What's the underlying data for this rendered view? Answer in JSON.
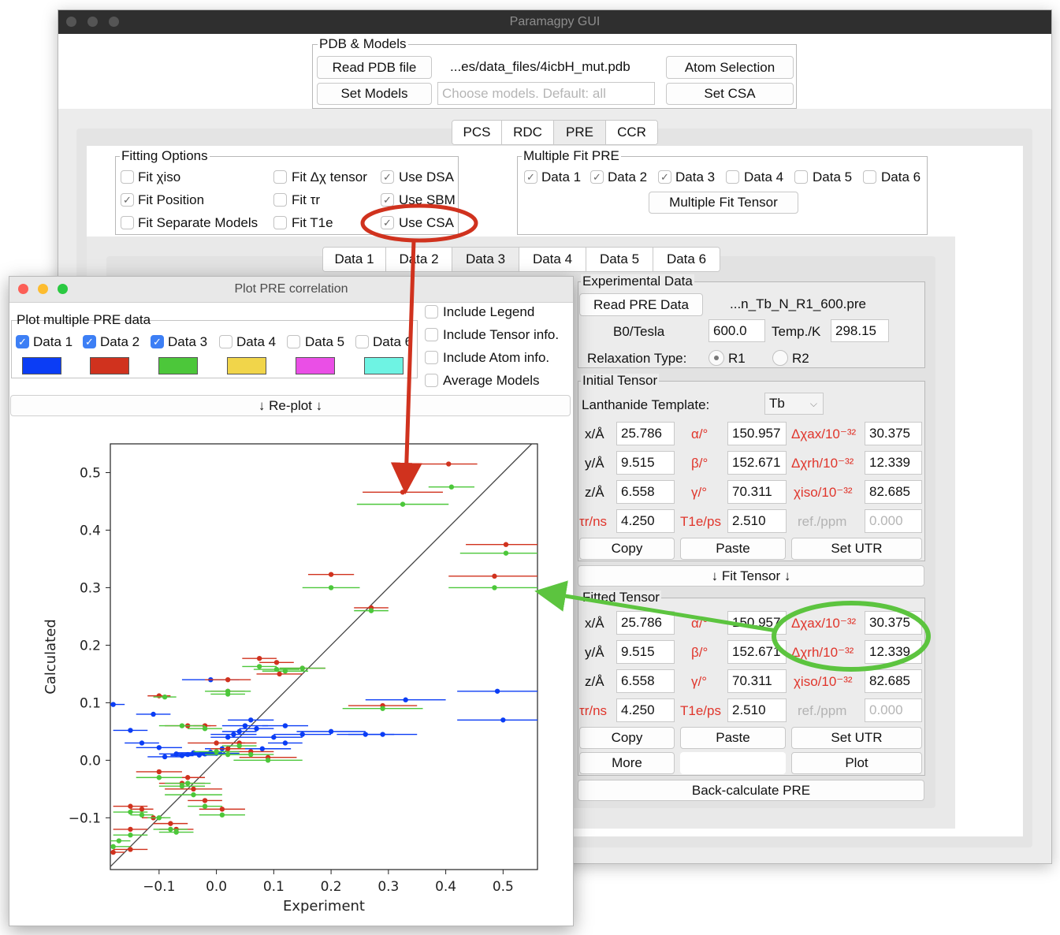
{
  "main_window": {
    "title": "Paramagpy GUI",
    "pdb": {
      "legend": "PDB & Models",
      "read_pdb": "Read PDB file",
      "pdb_path": "...es/data_files/4icbH_mut.pdb",
      "atom_selection": "Atom Selection",
      "set_models": "Set Models",
      "models_placeholder": "Choose models. Default: all",
      "set_csa": "Set CSA"
    },
    "top_tabs": [
      "PCS",
      "RDC",
      "PRE",
      "CCR"
    ],
    "fitting_options": {
      "legend": "Fitting Options",
      "items": [
        {
          "label": "Fit χiso",
          "checked": false
        },
        {
          "label": "Fit Δχ tensor",
          "checked": false
        },
        {
          "label": "Use DSA",
          "checked": true
        },
        {
          "label": "Fit Position",
          "checked": true
        },
        {
          "label": "Fit τr",
          "checked": false
        },
        {
          "label": "Use SBM",
          "checked": true
        },
        {
          "label": "Fit Separate Models",
          "checked": false
        },
        {
          "label": "Fit T1e",
          "checked": false
        },
        {
          "label": "Use CSA",
          "checked": true
        }
      ]
    },
    "multiple_fit": {
      "legend": "Multiple Fit PRE",
      "items": [
        "Data 1",
        "Data 2",
        "Data 3",
        "Data 4",
        "Data 5",
        "Data 6"
      ],
      "checked": [
        true,
        true,
        true,
        false,
        false,
        false
      ],
      "button": "Multiple Fit Tensor"
    },
    "data_tabs": [
      "Data 1",
      "Data 2",
      "Data 3",
      "Data 4",
      "Data 5",
      "Data 6"
    ],
    "experimental": {
      "legend": "Experimental Data",
      "read_button": "Read PRE Data",
      "file": "...n_Tb_N_R1_600.pre",
      "b0_label": "B0/Tesla",
      "b0_value": "600.0",
      "temp_label": "Temp./K",
      "temp_value": "298.15",
      "relax_label": "Relaxation Type:",
      "r1": "R1",
      "r2": "R2"
    },
    "initial": {
      "legend": "Initial Tensor",
      "template_label": "Lanthanide Template:",
      "template_value": "Tb",
      "rows": [
        {
          "l1": "x/Å",
          "v1": "25.786",
          "l2": "α/°",
          "v2": "150.957",
          "l3": "Δχax/10⁻³²",
          "v3": "30.375"
        },
        {
          "l1": "y/Å",
          "v1": "9.515",
          "l2": "β/°",
          "v2": "152.671",
          "l3": "Δχrh/10⁻³²",
          "v3": "12.339"
        },
        {
          "l1": "z/Å",
          "v1": "6.558",
          "l2": "γ/°",
          "v2": "70.311",
          "l3": "χiso/10⁻³²",
          "v3": "82.685"
        },
        {
          "l1": "τr/ns",
          "v1": "4.250",
          "l2": "T1e/ps",
          "v2": "2.510",
          "l3": "ref./ppm",
          "v3": "0.000"
        }
      ],
      "copy": "Copy",
      "paste": "Paste",
      "set_utr": "Set UTR"
    },
    "fit_tensor_button": "↓  Fit Tensor  ↓",
    "fitted": {
      "legend": "Fitted Tensor",
      "rows": [
        {
          "l1": "x/Å",
          "v1": "25.786",
          "l2": "α/°",
          "v2": "150.957",
          "l3": "Δχax/10⁻³²",
          "v3": "30.375"
        },
        {
          "l1": "y/Å",
          "v1": "9.515",
          "l2": "β/°",
          "v2": "152.671",
          "l3": "Δχrh/10⁻³²",
          "v3": "12.339"
        },
        {
          "l1": "z/Å",
          "v1": "6.558",
          "l2": "γ/°",
          "v2": "70.311",
          "l3": "χiso/10⁻³²",
          "v3": "82.685"
        },
        {
          "l1": "τr/ns",
          "v1": "4.250",
          "l2": "T1e/ps",
          "v2": "2.510",
          "l3": "ref./ppm",
          "v3": "0.000"
        }
      ],
      "copy": "Copy",
      "paste": "Paste",
      "set_utr": "Set UTR",
      "more": "More",
      "plot": "Plot"
    },
    "back_calc": "Back-calculate PRE"
  },
  "plot_window": {
    "title": "Plot PRE correlation",
    "legend": "Plot multiple PRE data",
    "datasets": [
      "Data 1",
      "Data 2",
      "Data 3",
      "Data 4",
      "Data 5",
      "Data 6"
    ],
    "checked": [
      true,
      true,
      true,
      false,
      false,
      false
    ],
    "swatch_colors": [
      "#0b3df5",
      "#d0321e",
      "#4cc73a",
      "#f1d54a",
      "#ea4fe6",
      "#6ef3e3"
    ],
    "options": [
      "Include Legend",
      "Include Tensor info.",
      "Include Atom info.",
      "Average Models"
    ],
    "replot": "↓   Re-plot   ↓"
  },
  "chart_data": {
    "type": "scatter",
    "xlabel": "Experiment",
    "ylabel": "Calculated",
    "xlim": [
      -0.185,
      0.56
    ],
    "ylim": [
      -0.19,
      0.55
    ],
    "xticks": [
      "−0.1",
      "0.0",
      "0.1",
      "0.2",
      "0.3",
      "0.4",
      "0.5"
    ],
    "yticks": [
      "−0.1",
      "0.0",
      "0.1",
      "0.2",
      "0.3",
      "0.4",
      "0.5"
    ],
    "diagonal": true,
    "series": [
      {
        "color": "#0b3df5",
        "points": [
          [
            -0.18,
            0.097,
            0.02
          ],
          [
            -0.15,
            0.052,
            0.03
          ],
          [
            -0.13,
            0.03,
            0.03
          ],
          [
            -0.11,
            0.08,
            0.03
          ],
          [
            -0.1,
            0.022,
            0.04
          ],
          [
            -0.09,
            0.006,
            0.03
          ],
          [
            -0.07,
            0.011,
            0.03
          ],
          [
            -0.06,
            0.008,
            0.02
          ],
          [
            -0.05,
            0.01,
            0.03
          ],
          [
            -0.04,
            0.013,
            0.03
          ],
          [
            -0.03,
            0.009,
            0.03
          ],
          [
            -0.02,
            0.011,
            0.03
          ],
          [
            -0.01,
            0.014,
            0.02
          ],
          [
            -0.01,
            0.14,
            0.05
          ],
          [
            0.0,
            0.012,
            0.04
          ],
          [
            0.01,
            0.02,
            0.03
          ],
          [
            0.02,
            0.04,
            0.03
          ],
          [
            0.03,
            0.045,
            0.04
          ],
          [
            0.04,
            0.05,
            0.03
          ],
          [
            0.05,
            0.06,
            0.04
          ],
          [
            0.06,
            0.07,
            0.04
          ],
          [
            0.07,
            0.055,
            0.03
          ],
          [
            0.1,
            0.04,
            0.05
          ],
          [
            0.12,
            0.06,
            0.04
          ],
          [
            0.15,
            0.045,
            0.05
          ],
          [
            0.2,
            0.05,
            0.06
          ],
          [
            0.26,
            0.045,
            0.05
          ],
          [
            0.29,
            0.045,
            0.06
          ],
          [
            0.33,
            0.105,
            0.07
          ],
          [
            0.49,
            0.12,
            0.07
          ],
          [
            0.5,
            0.07,
            0.08
          ],
          [
            0.12,
            0.03,
            0.03
          ],
          [
            0.08,
            0.02,
            0.05
          ]
        ]
      },
      {
        "color": "#d0321e",
        "points": [
          [
            0.325,
            0.466,
            0.07
          ],
          [
            0.405,
            0.515,
            0.05
          ],
          [
            0.505,
            0.375,
            0.07
          ],
          [
            0.485,
            0.32,
            0.08
          ],
          [
            0.2,
            0.323,
            0.04
          ],
          [
            0.27,
            0.265,
            0.03
          ],
          [
            0.075,
            0.177,
            0.03
          ],
          [
            0.105,
            0.17,
            0.03
          ],
          [
            0.11,
            0.15,
            0.04
          ],
          [
            0.15,
            0.16,
            0.04
          ],
          [
            0.02,
            0.14,
            0.04
          ],
          [
            0.02,
            0.12,
            0.03
          ],
          [
            -0.1,
            0.112,
            0.02
          ],
          [
            0.29,
            0.095,
            0.06
          ],
          [
            -0.05,
            0.06,
            0.04
          ],
          [
            -0.02,
            0.06,
            0.02
          ],
          [
            0.02,
            0.02,
            0.03
          ],
          [
            0.0,
            0.03,
            0.05
          ],
          [
            -0.1,
            -0.02,
            0.04
          ],
          [
            -0.05,
            -0.03,
            0.03
          ],
          [
            -0.15,
            -0.08,
            0.03
          ],
          [
            -0.13,
            -0.085,
            0.02
          ],
          [
            -0.08,
            -0.11,
            0.03
          ],
          [
            -0.07,
            -0.12,
            0.03
          ],
          [
            -0.15,
            -0.12,
            0.03
          ],
          [
            -0.15,
            -0.155,
            0.03
          ],
          [
            -0.02,
            -0.07,
            0.03
          ],
          [
            0.01,
            -0.085,
            0.04
          ],
          [
            -0.04,
            -0.05,
            0.05
          ],
          [
            -0.06,
            -0.04,
            0.04
          ],
          [
            0.06,
            0.015,
            0.04
          ],
          [
            0.04,
            0.03,
            0.03
          ],
          [
            0.09,
            0.005,
            0.05
          ],
          [
            -0.11,
            -0.1,
            0.02
          ],
          [
            -0.18,
            -0.16,
            0.02
          ]
        ]
      },
      {
        "color": "#4cc73a",
        "points": [
          [
            0.325,
            0.445,
            0.08
          ],
          [
            0.41,
            0.475,
            0.04
          ],
          [
            0.505,
            0.36,
            0.08
          ],
          [
            0.485,
            0.3,
            0.08
          ],
          [
            0.2,
            0.3,
            0.05
          ],
          [
            0.27,
            0.26,
            0.03
          ],
          [
            0.075,
            0.163,
            0.03
          ],
          [
            0.105,
            0.158,
            0.04
          ],
          [
            0.12,
            0.155,
            0.04
          ],
          [
            0.15,
            0.16,
            0.04
          ],
          [
            0.02,
            0.12,
            0.04
          ],
          [
            0.02,
            0.115,
            0.03
          ],
          [
            -0.09,
            0.11,
            0.02
          ],
          [
            0.29,
            0.09,
            0.07
          ],
          [
            -0.06,
            0.06,
            0.04
          ],
          [
            -0.02,
            0.055,
            0.03
          ],
          [
            0.02,
            0.01,
            0.04
          ],
          [
            0.0,
            0.015,
            0.04
          ],
          [
            -0.1,
            -0.03,
            0.04
          ],
          [
            -0.05,
            -0.04,
            0.04
          ],
          [
            -0.15,
            -0.09,
            0.03
          ],
          [
            -0.13,
            -0.095,
            0.02
          ],
          [
            -0.08,
            -0.12,
            0.03
          ],
          [
            -0.07,
            -0.125,
            0.03
          ],
          [
            -0.15,
            -0.13,
            0.03
          ],
          [
            -0.18,
            -0.15,
            0.03
          ],
          [
            -0.02,
            -0.08,
            0.03
          ],
          [
            0.01,
            -0.095,
            0.04
          ],
          [
            -0.04,
            -0.06,
            0.05
          ],
          [
            -0.06,
            -0.045,
            0.04
          ],
          [
            0.06,
            0.01,
            0.04
          ],
          [
            0.04,
            0.025,
            0.03
          ],
          [
            0.09,
            0.0,
            0.06
          ],
          [
            -0.1,
            -0.1,
            0.02
          ],
          [
            -0.17,
            -0.14,
            0.02
          ]
        ]
      }
    ]
  }
}
